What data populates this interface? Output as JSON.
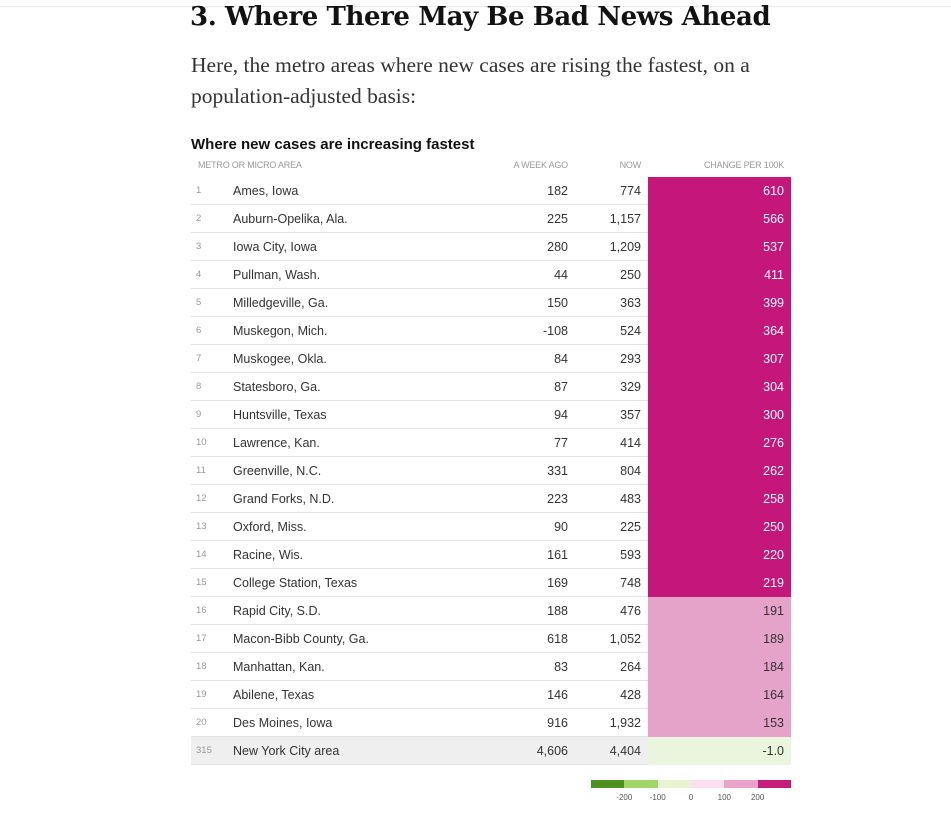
{
  "section": {
    "headline": "3. Where There May Be Bad News Ahead",
    "intro": "Here, the metro areas where new cases are rising the fastest, on a population-adjusted basis:"
  },
  "table": {
    "title": "Where new cases are increasing fastest",
    "headers": {
      "metro": "Metro or micro area",
      "week_ago": "A week ago",
      "now": "Now",
      "change": "Change per 100k"
    },
    "rows": [
      {
        "rank": "1",
        "name": "Ames, Iowa",
        "week_ago": "182",
        "now": "774",
        "change": "610",
        "color": "#c4167b",
        "text_color": "#ffffff"
      },
      {
        "rank": "2",
        "name": "Auburn-Opelika, Ala.",
        "week_ago": "225",
        "now": "1,157",
        "change": "566",
        "color": "#c4167b",
        "text_color": "#ffffff"
      },
      {
        "rank": "3",
        "name": "Iowa City, Iowa",
        "week_ago": "280",
        "now": "1,209",
        "change": "537",
        "color": "#c4167b",
        "text_color": "#ffffff"
      },
      {
        "rank": "4",
        "name": "Pullman, Wash.",
        "week_ago": "44",
        "now": "250",
        "change": "411",
        "color": "#c4167b",
        "text_color": "#ffffff"
      },
      {
        "rank": "5",
        "name": "Milledgeville, Ga.",
        "week_ago": "150",
        "now": "363",
        "change": "399",
        "color": "#c4167b",
        "text_color": "#ffffff"
      },
      {
        "rank": "6",
        "name": "Muskegon, Mich.",
        "week_ago": "-108",
        "now": "524",
        "change": "364",
        "color": "#c4167b",
        "text_color": "#ffffff"
      },
      {
        "rank": "7",
        "name": "Muskogee, Okla.",
        "week_ago": "84",
        "now": "293",
        "change": "307",
        "color": "#c4167b",
        "text_color": "#ffffff"
      },
      {
        "rank": "8",
        "name": "Statesboro, Ga.",
        "week_ago": "87",
        "now": "329",
        "change": "304",
        "color": "#c4167b",
        "text_color": "#ffffff"
      },
      {
        "rank": "9",
        "name": "Huntsville, Texas",
        "week_ago": "94",
        "now": "357",
        "change": "300",
        "color": "#c4167b",
        "text_color": "#ffffff"
      },
      {
        "rank": "10",
        "name": "Lawrence, Kan.",
        "week_ago": "77",
        "now": "414",
        "change": "276",
        "color": "#c4167b",
        "text_color": "#ffffff"
      },
      {
        "rank": "11",
        "name": "Greenville, N.C.",
        "week_ago": "331",
        "now": "804",
        "change": "262",
        "color": "#c4167b",
        "text_color": "#ffffff"
      },
      {
        "rank": "12",
        "name": "Grand Forks, N.D.",
        "week_ago": "223",
        "now": "483",
        "change": "258",
        "color": "#c4167b",
        "text_color": "#ffffff"
      },
      {
        "rank": "13",
        "name": "Oxford, Miss.",
        "week_ago": "90",
        "now": "225",
        "change": "250",
        "color": "#c4167b",
        "text_color": "#ffffff"
      },
      {
        "rank": "14",
        "name": "Racine, Wis.",
        "week_ago": "161",
        "now": "593",
        "change": "220",
        "color": "#c4167b",
        "text_color": "#ffffff"
      },
      {
        "rank": "15",
        "name": "College Station, Texas",
        "week_ago": "169",
        "now": "748",
        "change": "219",
        "color": "#c4167b",
        "text_color": "#ffffff"
      },
      {
        "rank": "16",
        "name": "Rapid City, S.D.",
        "week_ago": "188",
        "now": "476",
        "change": "191",
        "color": "#e6a3c9",
        "text_color": "#333333"
      },
      {
        "rank": "17",
        "name": "Macon-Bibb County, Ga.",
        "week_ago": "618",
        "now": "1,052",
        "change": "189",
        "color": "#e6a3c9",
        "text_color": "#333333"
      },
      {
        "rank": "18",
        "name": "Manhattan, Kan.",
        "week_ago": "83",
        "now": "264",
        "change": "184",
        "color": "#e6a3c9",
        "text_color": "#333333"
      },
      {
        "rank": "19",
        "name": "Abilene, Texas",
        "week_ago": "146",
        "now": "428",
        "change": "164",
        "color": "#e6a3c9",
        "text_color": "#333333"
      },
      {
        "rank": "20",
        "name": "Des Moines, Iowa",
        "week_ago": "916",
        "now": "1,932",
        "change": "153",
        "color": "#e6a3c9",
        "text_color": "#333333"
      }
    ],
    "highlight_row": {
      "rank": "315",
      "name": "New York City area",
      "week_ago": "4,606",
      "now": "4,404",
      "change": "-1.0",
      "color": "#e9f5dc",
      "text_color": "#333333"
    }
  },
  "legend": {
    "colors": [
      "#4d9221",
      "#a1d76a",
      "#e6f5d0",
      "#fde0ef",
      "#e9a3c9",
      "#c51b7d"
    ],
    "ticks": [
      "-200",
      "-100",
      "0",
      "100",
      "200"
    ]
  }
}
